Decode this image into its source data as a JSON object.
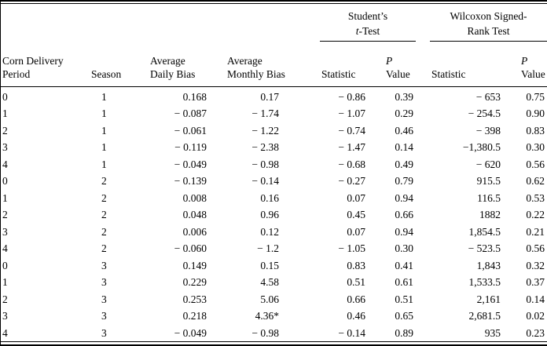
{
  "table": {
    "groups": {
      "t_test": {
        "line1": "Student’s",
        "line2_italic": "t",
        "line2_rest": "-Test"
      },
      "wilcoxon": {
        "line1": "Wilcoxon Signed-",
        "line2": "Rank Test"
      }
    },
    "columns": {
      "period": {
        "line1": "Corn Delivery",
        "line2": "Period"
      },
      "season": "Season",
      "daily_bias": {
        "line1": "Average",
        "line2": "Daily Bias"
      },
      "monthly_bias": {
        "line1": "Average",
        "line2": "Monthly Bias"
      },
      "statistic": "Statistic",
      "p_value": {
        "line1_italic": "P",
        "line2": "Value"
      }
    },
    "rows": [
      [
        "0",
        "1",
        "0.168",
        "0.17",
        "− 0.86",
        "0.39",
        "− 653",
        "0.75"
      ],
      [
        "1",
        "1",
        "− 0.087",
        "− 1.74",
        "− 1.07",
        "0.29",
        "− 254.5",
        "0.90"
      ],
      [
        "2",
        "1",
        "− 0.061",
        "− 1.22",
        "− 0.74",
        "0.46",
        "− 398",
        "0.83"
      ],
      [
        "3",
        "1",
        "− 0.119",
        "− 2.38",
        "− 1.47",
        "0.14",
        "−1,380.5",
        "0.30"
      ],
      [
        "4",
        "1",
        "− 0.049",
        "− 0.98",
        "− 0.68",
        "0.49",
        "− 620",
        "0.56"
      ],
      [
        "0",
        "2",
        "− 0.139",
        "− 0.14",
        "− 0.27",
        "0.79",
        "915.5",
        "0.62"
      ],
      [
        "1",
        "2",
        "0.008",
        "0.16",
        "0.07",
        "0.94",
        "116.5",
        "0.53"
      ],
      [
        "2",
        "2",
        "0.048",
        "0.96",
        "0.45",
        "0.66",
        "1882",
        "0.22"
      ],
      [
        "3",
        "2",
        "0.006",
        "0.12",
        "0.07",
        "0.94",
        "1,854.5",
        "0.21"
      ],
      [
        "4",
        "2",
        "− 0.060",
        "− 1.2",
        "− 1.05",
        "0.30",
        "− 523.5",
        "0.56"
      ],
      [
        "0",
        "3",
        "0.149",
        "0.15",
        "0.83",
        "0.41",
        "1,843",
        "0.32"
      ],
      [
        "1",
        "3",
        "0.229",
        "4.58",
        "0.51",
        "0.61",
        "1,533.5",
        "0.37"
      ],
      [
        "2",
        "3",
        "0.253",
        "5.06",
        "0.66",
        "0.51",
        "2,161",
        "0.14"
      ],
      [
        "3",
        "3",
        "0.218",
        "4.36*",
        "0.46",
        "0.65",
        "2,681.5",
        "0.02"
      ],
      [
        "4",
        "3",
        "− 0.049",
        "− 0.98",
        "− 0.14",
        "0.89",
        "935",
        "0.23"
      ]
    ]
  }
}
